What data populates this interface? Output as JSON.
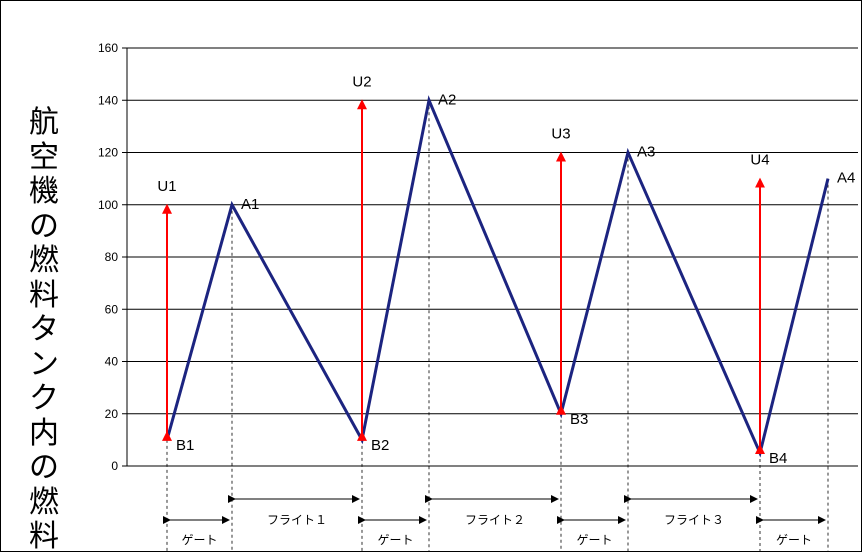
{
  "chart_data": {
    "type": "line",
    "ylabel": "航空機の燃料タンク内の燃料",
    "ylim": [
      0,
      160
    ],
    "yticks": [
      0,
      20,
      40,
      60,
      80,
      100,
      120,
      140,
      160
    ],
    "grid": true,
    "series": [
      {
        "color": "#1c2480",
        "points": [
          {
            "label": "B1",
            "x": 1.0,
            "y": 10
          },
          {
            "label": "A1",
            "x": 2.0,
            "y": 100
          },
          {
            "label": "B2",
            "x": 4.0,
            "y": 10
          },
          {
            "label": "A2",
            "x": 5.0,
            "y": 140
          },
          {
            "label": "B3",
            "x": 7.0,
            "y": 20
          },
          {
            "label": "A3",
            "x": 8.0,
            "y": 120
          },
          {
            "label": "B4",
            "x": 10.0,
            "y": 5
          },
          {
            "label": "A4",
            "x": 11.0,
            "y": 110
          }
        ]
      }
    ],
    "arrows": [
      {
        "label": "U1",
        "x": 1.0,
        "y_from": 10,
        "y_to": 100,
        "color": "#ff0000"
      },
      {
        "label": "U2",
        "x": 4.0,
        "y_from": 10,
        "y_to": 140,
        "color": "#ff0000"
      },
      {
        "label": "U3",
        "x": 7.0,
        "y_from": 20,
        "y_to": 120,
        "color": "#ff0000"
      },
      {
        "label": "U4",
        "x": 10.0,
        "y_from": 5,
        "y_to": 110,
        "color": "#ff0000"
      }
    ],
    "segments": [
      {
        "label": "ゲート",
        "x_from": 1.0,
        "x_to": 2.0
      },
      {
        "label": "フライト１",
        "x_from": 2.0,
        "x_to": 4.0
      },
      {
        "label": "ゲート",
        "x_from": 4.0,
        "x_to": 5.0
      },
      {
        "label": "フライト２",
        "x_from": 5.0,
        "x_to": 7.0
      },
      {
        "label": "ゲート",
        "x_from": 7.0,
        "x_to": 8.0
      },
      {
        "label": "フライト３",
        "x_from": 8.0,
        "x_to": 10.0
      },
      {
        "label": "ゲート",
        "x_from": 10.0,
        "x_to": 11.0
      }
    ]
  }
}
